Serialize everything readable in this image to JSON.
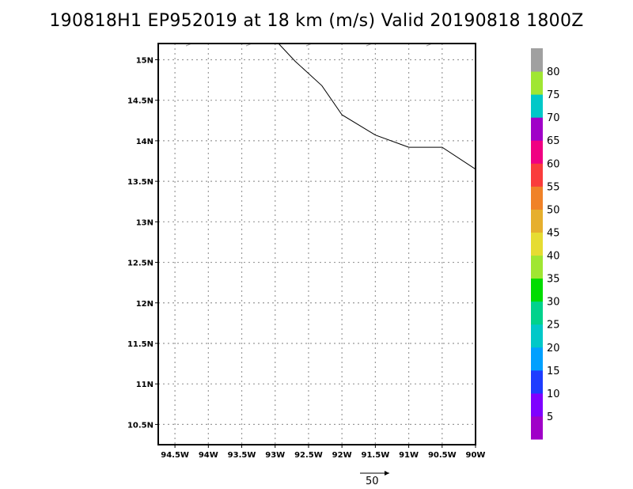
{
  "title": "190818H1 EP952019 at 18 km (m/s) Valid 20190818 1800Z",
  "map": {
    "lon_range": [
      -94.75,
      -90
    ],
    "lat_range": [
      10.25,
      15.2
    ],
    "grid_lines": true,
    "lon_ticks": [
      {
        "value": -94.5,
        "label": "94.5W"
      },
      {
        "value": -94.0,
        "label": "94W"
      },
      {
        "value": -93.5,
        "label": "93.5W"
      },
      {
        "value": -93.0,
        "label": "93W"
      },
      {
        "value": -92.5,
        "label": "92.5W"
      },
      {
        "value": -92.0,
        "label": "92W"
      },
      {
        "value": -91.5,
        "label": "91.5W"
      },
      {
        "value": -91.0,
        "label": "91W"
      },
      {
        "value": -90.5,
        "label": "90.5W"
      },
      {
        "value": -90.0,
        "label": "90W"
      }
    ],
    "lat_ticks": [
      {
        "value": 10.5,
        "label": "10.5N"
      },
      {
        "value": 11.0,
        "label": "11N"
      },
      {
        "value": 11.5,
        "label": "11.5N"
      },
      {
        "value": 12.0,
        "label": "12N"
      },
      {
        "value": 12.5,
        "label": "12.5N"
      },
      {
        "value": 13.0,
        "label": "13N"
      },
      {
        "value": 13.5,
        "label": "13.5N"
      },
      {
        "value": 14.0,
        "label": "14N"
      },
      {
        "value": 14.5,
        "label": "14.5N"
      },
      {
        "value": 15.0,
        "label": "15N"
      }
    ],
    "coastline": [
      [
        -92.95,
        15.2
      ],
      [
        -92.7,
        14.98
      ],
      [
        -92.3,
        14.68
      ],
      [
        -92.0,
        14.32
      ],
      [
        -91.5,
        14.07
      ],
      [
        -91.0,
        13.92
      ],
      [
        -90.5,
        13.92
      ],
      [
        -90.0,
        13.65
      ]
    ],
    "wind_barbs_at_top": [
      -94.3,
      -93.4,
      -92.5,
      -91.6,
      -90.7
    ]
  },
  "colorbar": {
    "colors": [
      "#a000c8",
      "#7f00ff",
      "#1e3cff",
      "#00a0ff",
      "#00c8c8",
      "#00d28c",
      "#00dc00",
      "#a0e632",
      "#e6dc32",
      "#e6af2d",
      "#f08228",
      "#fa3c3c",
      "#f00082",
      "#a000c8",
      "#00c8c8",
      "#a0e632",
      "#a0a0a0"
    ],
    "labels": [
      "5",
      "10",
      "15",
      "20",
      "25",
      "30",
      "35",
      "40",
      "45",
      "50",
      "55",
      "60",
      "65",
      "70",
      "75",
      "80"
    ]
  },
  "scale_vector": {
    "label": "50"
  }
}
